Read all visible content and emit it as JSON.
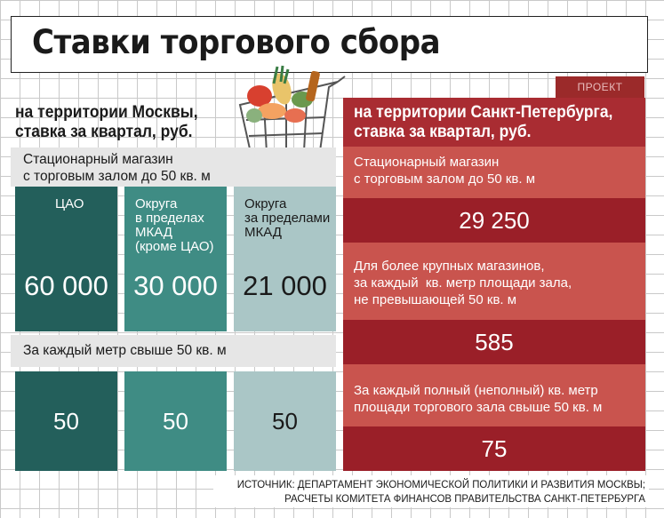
{
  "title": "Ставки торгового сбора",
  "moscow": {
    "heading_line1": "на территории Москвы,",
    "heading_line2": "ставка за квартал, руб.",
    "stationary_label_line1": "Стационарный магазин",
    "stationary_label_line2": "с торговым залом до 50 кв. м",
    "columns": [
      {
        "label": [
          "ЦАО"
        ],
        "value": "60 000"
      },
      {
        "label": [
          "Округа",
          "в пределах",
          "МКАД",
          "(кроме ЦАО)"
        ],
        "value": "30 000"
      },
      {
        "label": [
          "Округа",
          "за пределами",
          "МКАД"
        ],
        "value": "21 000"
      }
    ],
    "per_meter_label": "За каждый метр свыше 50 кв. м",
    "per_meter_values": [
      "50",
      "50",
      "50"
    ]
  },
  "spb": {
    "tab": "ПРОЕКТ",
    "heading_line1": "на территории Санкт-Петербурга,",
    "heading_line2": "ставка за квартал, руб.",
    "row1_label": [
      "Стационарный магазин",
      "с торговым залом до 50 кв. м"
    ],
    "row1_value": "29 250",
    "row2_label": [
      "Для более крупных магазинов,",
      "за каждый  кв. метр площади зала,",
      "не превышающей 50 кв. м"
    ],
    "row2_value": "585",
    "row3_label": [
      "За каждый полный (неполный) кв. метр",
      "площади торгового зала свыше 50 кв. м"
    ],
    "row3_value": "75"
  },
  "source_line1": "ИСТОЧНИК: ДЕПАРТАМЕНТ ЭКОНОМИЧЕСКОЙ ПОЛИТИКИ И РАЗВИТИЯ МОСКВЫ;",
  "source_line2": "РАСЧЕТЫ КОМИТЕТА ФИНАНСОВ ПРАВИТЕЛЬСТВА САНКТ-ПЕТЕРБУРГА",
  "icons": {
    "cart": "shopping-cart-icon"
  },
  "colors": {
    "moscow_dark": "#235f5b",
    "moscow_mid": "#3f8c84",
    "moscow_light": "#aac6c6",
    "spb_head": "#a92c32",
    "spb_label": "#c9544e",
    "spb_value": "#9a1f28"
  }
}
